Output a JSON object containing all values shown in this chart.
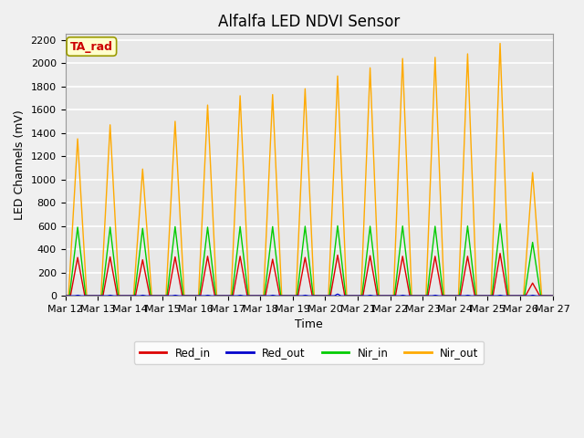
{
  "title": "Alfalfa LED NDVI Sensor",
  "ylabel": "LED Channels (mV)",
  "xlabel": "Time",
  "annotation": "TA_rad",
  "legend": [
    "Red_in",
    "Red_out",
    "Nir_in",
    "Nir_out"
  ],
  "legend_colors": [
    "#dd0000",
    "#0000cc",
    "#00cc00",
    "#ffaa00"
  ],
  "ylim": [
    0,
    2250
  ],
  "plot_bg_color": "#e8e8e8",
  "grid_color": "white",
  "n_days": 15,
  "start_day": 12,
  "nir_out_peaks": [
    1350,
    1470,
    1090,
    1500,
    1640,
    1720,
    1730,
    1780,
    1890,
    1960,
    2040,
    2050,
    2080,
    2170,
    1060
  ],
  "nir_in_peaks": [
    590,
    590,
    580,
    595,
    590,
    595,
    595,
    598,
    602,
    598,
    600,
    598,
    600,
    620,
    460
  ],
  "red_in_peaks": [
    330,
    335,
    310,
    335,
    340,
    340,
    315,
    330,
    350,
    345,
    340,
    340,
    340,
    365,
    110
  ],
  "red_out_peaks": [
    5,
    5,
    5,
    5,
    5,
    5,
    5,
    5,
    15,
    5,
    5,
    5,
    5,
    5,
    5
  ],
  "title_fontsize": 12,
  "axis_fontsize": 9,
  "tick_fontsize": 8
}
